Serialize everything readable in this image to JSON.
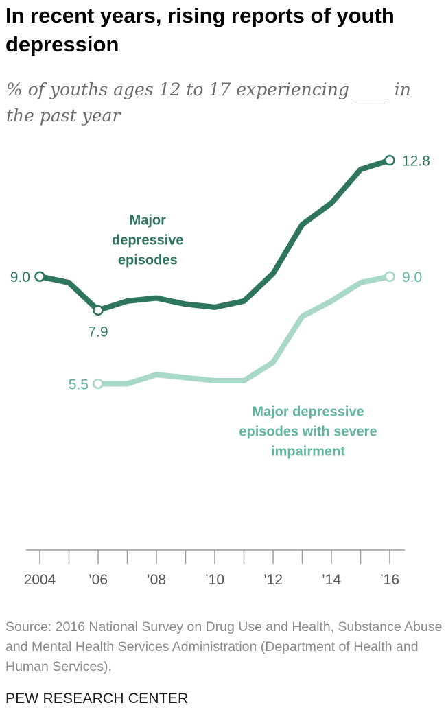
{
  "title": "In recent years, rising reports of youth depression",
  "subtitle": "% of youths ages 12 to 17 experiencing ____ in the past year",
  "chart_data": {
    "type": "line",
    "title": "In recent years, rising reports of youth depression",
    "subtitle": "% of youths ages 12 to 17 experiencing ____ in the past year",
    "x": [
      2004,
      2005,
      2006,
      2007,
      2008,
      2009,
      2010,
      2011,
      2012,
      2013,
      2014,
      2015,
      2016
    ],
    "x_tick_values": [
      2004,
      2006,
      2008,
      2010,
      2012,
      2014,
      2016
    ],
    "x_tick_labels": [
      "2004",
      "’06",
      "’08",
      "’10",
      "’12",
      "’14",
      "’16"
    ],
    "xlim": [
      2004,
      2016
    ],
    "ylim": [
      0,
      14
    ],
    "grid": false,
    "legend": "direct labels on lines",
    "series": [
      {
        "name": "Major depressive episodes",
        "label_lines": [
          "Major",
          "depressive",
          "episodes"
        ],
        "color": "#2e7560",
        "x": [
          2004,
          2005,
          2006,
          2007,
          2008,
          2009,
          2010,
          2011,
          2012,
          2013,
          2014,
          2015,
          2016
        ],
        "values": [
          9.0,
          8.8,
          7.9,
          8.2,
          8.3,
          8.1,
          8.0,
          8.2,
          9.1,
          10.7,
          11.4,
          12.5,
          12.8
        ],
        "point_labels": [
          {
            "x": 2004,
            "text": "9.0"
          },
          {
            "x": 2006,
            "text": "7.9"
          },
          {
            "x": 2016,
            "text": "12.8"
          }
        ]
      },
      {
        "name": "Major depressive episodes with severe impairment",
        "label_lines": [
          "Major depressive",
          "episodes with severe",
          "impairment"
        ],
        "color": "#a8d8c8",
        "label_color": "#5fb5a0",
        "x": [
          2006,
          2007,
          2008,
          2009,
          2010,
          2011,
          2012,
          2013,
          2014,
          2015,
          2016
        ],
        "values": [
          5.5,
          5.5,
          5.8,
          5.7,
          5.6,
          5.6,
          6.2,
          7.7,
          8.2,
          8.8,
          9.0
        ],
        "point_labels": [
          {
            "x": 2006,
            "text": "5.5"
          },
          {
            "x": 2016,
            "text": "9.0"
          }
        ]
      }
    ],
    "colors": {
      "axis": "#9a9a9a",
      "tick_label": "#555555"
    }
  },
  "source": "Source: 2016 National Survey on Drug Use and Health, Substance Abuse and Mental Health Services Administration (Department of Health and Human Services).",
  "brand": "PEW RESEARCH CENTER"
}
